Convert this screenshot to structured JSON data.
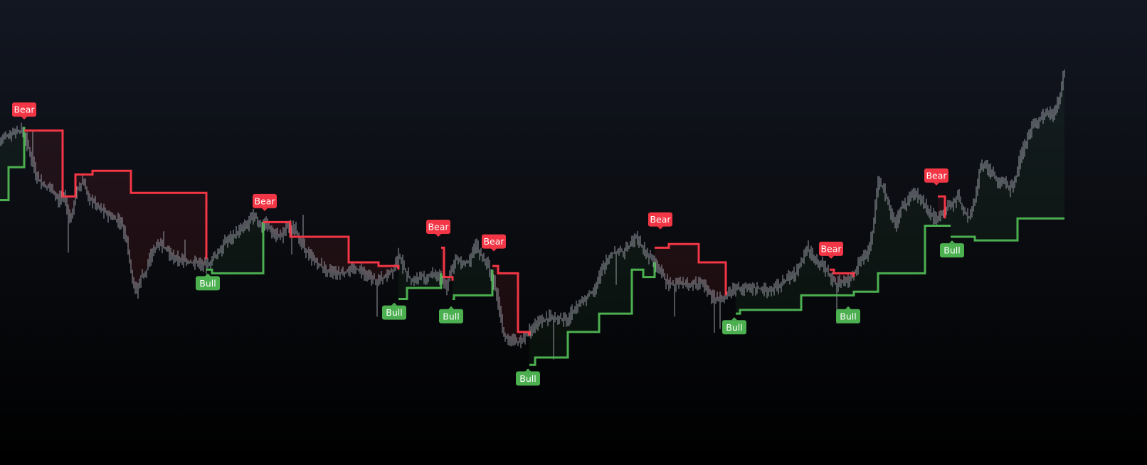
{
  "chart_data": {
    "type": "line",
    "title": "",
    "xlabel": "",
    "ylabel": "",
    "x_bars": [
      0,
      1560
    ],
    "ylim": [
      0,
      100
    ],
    "grid": false,
    "price_series": {
      "name": "price",
      "color": "#b2b5be",
      "points": [
        [
          0,
          73
        ],
        [
          12,
          75
        ],
        [
          22,
          76
        ],
        [
          32,
          76
        ],
        [
          40,
          71
        ],
        [
          52,
          63
        ],
        [
          62,
          61
        ],
        [
          70,
          60
        ],
        [
          82,
          57
        ],
        [
          90,
          59
        ],
        [
          98,
          51
        ],
        [
          108,
          60
        ],
        [
          116,
          62
        ],
        [
          124,
          58
        ],
        [
          134,
          56
        ],
        [
          146,
          54
        ],
        [
          158,
          52
        ],
        [
          170,
          51
        ],
        [
          178,
          46
        ],
        [
          186,
          35
        ],
        [
          192,
          32
        ],
        [
          198,
          36
        ],
        [
          206,
          38
        ],
        [
          214,
          43
        ],
        [
          222,
          45
        ],
        [
          232,
          44
        ],
        [
          240,
          42
        ],
        [
          250,
          41
        ],
        [
          262,
          40
        ],
        [
          276,
          40
        ],
        [
          290,
          39
        ],
        [
          304,
          42
        ],
        [
          318,
          46
        ],
        [
          332,
          48
        ],
        [
          346,
          50
        ],
        [
          358,
          53
        ],
        [
          364,
          50
        ],
        [
          372,
          51
        ],
        [
          384,
          48
        ],
        [
          396,
          47
        ],
        [
          404,
          50
        ],
        [
          414,
          49
        ],
        [
          424,
          45
        ],
        [
          434,
          42
        ],
        [
          444,
          40
        ],
        [
          458,
          38
        ],
        [
          470,
          37
        ],
        [
          482,
          37
        ],
        [
          494,
          38
        ],
        [
          506,
          38
        ],
        [
          518,
          36
        ],
        [
          530,
          35
        ],
        [
          542,
          36
        ],
        [
          552,
          38
        ],
        [
          560,
          42
        ],
        [
          568,
          38
        ],
        [
          578,
          35
        ],
        [
          588,
          36
        ],
        [
          600,
          36
        ],
        [
          612,
          37
        ],
        [
          620,
          35
        ],
        [
          626,
          33
        ],
        [
          632,
          37
        ],
        [
          640,
          41
        ],
        [
          650,
          40
        ],
        [
          660,
          40
        ],
        [
          668,
          45
        ],
        [
          676,
          42
        ],
        [
          684,
          40
        ],
        [
          690,
          37
        ],
        [
          696,
          33
        ],
        [
          702,
          27
        ],
        [
          708,
          20
        ],
        [
          716,
          19
        ],
        [
          724,
          18
        ],
        [
          734,
          19
        ],
        [
          742,
          21
        ],
        [
          752,
          23
        ],
        [
          762,
          24
        ],
        [
          772,
          25
        ],
        [
          784,
          25
        ],
        [
          796,
          24
        ],
        [
          806,
          27
        ],
        [
          816,
          29
        ],
        [
          826,
          31
        ],
        [
          836,
          33
        ],
        [
          846,
          38
        ],
        [
          856,
          42
        ],
        [
          866,
          43
        ],
        [
          876,
          43
        ],
        [
          886,
          45
        ],
        [
          894,
          47
        ],
        [
          900,
          45
        ],
        [
          910,
          42
        ],
        [
          920,
          40
        ],
        [
          930,
          37
        ],
        [
          938,
          34
        ],
        [
          948,
          34
        ],
        [
          958,
          34
        ],
        [
          968,
          34
        ],
        [
          978,
          34
        ],
        [
          986,
          35
        ],
        [
          994,
          32
        ],
        [
          1004,
          30
        ],
        [
          1014,
          30
        ],
        [
          1024,
          32
        ],
        [
          1034,
          33
        ],
        [
          1044,
          33
        ],
        [
          1054,
          33
        ],
        [
          1066,
          33
        ],
        [
          1078,
          32
        ],
        [
          1088,
          33
        ],
        [
          1098,
          34
        ],
        [
          1108,
          36
        ],
        [
          1118,
          37
        ],
        [
          1126,
          40
        ],
        [
          1134,
          44
        ],
        [
          1142,
          42
        ],
        [
          1150,
          40
        ],
        [
          1158,
          39
        ],
        [
          1166,
          36
        ],
        [
          1176,
          34
        ],
        [
          1186,
          35
        ],
        [
          1194,
          35
        ],
        [
          1202,
          38
        ],
        [
          1210,
          41
        ],
        [
          1218,
          42
        ],
        [
          1226,
          48
        ],
        [
          1234,
          62
        ],
        [
          1242,
          60
        ],
        [
          1250,
          55
        ],
        [
          1258,
          50
        ],
        [
          1266,
          55
        ],
        [
          1274,
          56
        ],
        [
          1282,
          59
        ],
        [
          1290,
          58
        ],
        [
          1298,
          56
        ],
        [
          1306,
          54
        ],
        [
          1316,
          51
        ],
        [
          1322,
          53
        ],
        [
          1330,
          55
        ],
        [
          1338,
          56
        ],
        [
          1346,
          58
        ],
        [
          1354,
          54
        ],
        [
          1362,
          52
        ],
        [
          1370,
          57
        ],
        [
          1378,
          67
        ],
        [
          1386,
          66
        ],
        [
          1394,
          64
        ],
        [
          1402,
          62
        ],
        [
          1410,
          63
        ],
        [
          1418,
          60
        ],
        [
          1426,
          62
        ],
        [
          1434,
          69
        ],
        [
          1442,
          73
        ],
        [
          1450,
          77
        ],
        [
          1458,
          78
        ],
        [
          1466,
          80
        ],
        [
          1474,
          81
        ],
        [
          1480,
          80
        ],
        [
          1486,
          84
        ],
        [
          1490,
          86
        ],
        [
          1493,
          90
        ],
        [
          1496,
          92
        ]
      ]
    },
    "trend_series": [
      {
        "name": "bull-trail-0",
        "trend": "bull",
        "color": "#4caf50",
        "steps": [
          [
            0,
            57
          ],
          [
            12,
            57
          ],
          [
            12,
            66
          ],
          [
            34,
            66
          ],
          [
            34,
            77
          ]
        ]
      },
      {
        "name": "bear-trail-1",
        "trend": "bear",
        "color": "#f23645",
        "steps": [
          [
            34,
            76
          ],
          [
            88,
            76
          ],
          [
            88,
            58
          ],
          [
            106,
            58
          ],
          [
            106,
            64
          ],
          [
            130,
            64
          ],
          [
            130,
            65
          ],
          [
            184,
            65
          ],
          [
            184,
            59
          ],
          [
            290,
            59
          ],
          [
            290,
            41
          ]
        ]
      },
      {
        "name": "bull-trail-2",
        "trend": "bull",
        "color": "#4caf50",
        "steps": [
          [
            290,
            38
          ],
          [
            298,
            38
          ],
          [
            298,
            37
          ],
          [
            370,
            37
          ],
          [
            370,
            51
          ]
        ]
      },
      {
        "name": "bear-trail-3",
        "trend": "bear",
        "color": "#f23645",
        "steps": [
          [
            370,
            51
          ],
          [
            408,
            51
          ],
          [
            408,
            47
          ],
          [
            490,
            47
          ],
          [
            490,
            40
          ],
          [
            532,
            40
          ],
          [
            532,
            39
          ],
          [
            560,
            39
          ],
          [
            560,
            38
          ]
        ]
      },
      {
        "name": "bull-trail-4",
        "trend": "bull",
        "color": "#4caf50",
        "steps": [
          [
            560,
            30
          ],
          [
            572,
            30
          ],
          [
            572,
            33
          ],
          [
            620,
            33
          ],
          [
            620,
            37
          ]
        ]
      },
      {
        "name": "bear-trail-5",
        "trend": "bear",
        "color": "#f23645",
        "steps": [
          [
            620,
            44
          ],
          [
            624,
            44
          ],
          [
            624,
            36
          ],
          [
            636,
            36
          ],
          [
            636,
            35
          ]
        ]
      },
      {
        "name": "bull-trail-6",
        "trend": "bull",
        "color": "#4caf50",
        "steps": [
          [
            636,
            30
          ],
          [
            638,
            30
          ],
          [
            638,
            31
          ],
          [
            692,
            31
          ],
          [
            692,
            38
          ]
        ]
      },
      {
        "name": "bear-trail-7",
        "trend": "bear",
        "color": "#f23645",
        "steps": [
          [
            692,
            39
          ],
          [
            700,
            39
          ],
          [
            700,
            37
          ],
          [
            728,
            37
          ],
          [
            728,
            21
          ],
          [
            744,
            21
          ],
          [
            744,
            20
          ]
        ]
      },
      {
        "name": "bull-trail-8",
        "trend": "bull",
        "color": "#4caf50",
        "steps": [
          [
            744,
            12
          ],
          [
            752,
            12
          ],
          [
            752,
            14
          ],
          [
            798,
            14
          ],
          [
            798,
            21
          ],
          [
            842,
            21
          ],
          [
            842,
            26
          ],
          [
            888,
            26
          ],
          [
            888,
            38
          ],
          [
            904,
            38
          ],
          [
            904,
            36
          ],
          [
            920,
            36
          ],
          [
            920,
            40
          ]
        ]
      },
      {
        "name": "bear-trail-9",
        "trend": "bear",
        "color": "#f23645",
        "steps": [
          [
            920,
            44
          ],
          [
            940,
            44
          ],
          [
            940,
            45
          ],
          [
            982,
            45
          ],
          [
            982,
            40
          ],
          [
            1020,
            40
          ],
          [
            1020,
            31
          ]
        ]
      },
      {
        "name": "bull-trail-10",
        "trend": "bull",
        "color": "#4caf50",
        "steps": [
          [
            1034,
            26
          ],
          [
            1040,
            26
          ],
          [
            1040,
            27
          ],
          [
            1126,
            27
          ],
          [
            1126,
            31
          ],
          [
            1178,
            31
          ],
          [
            1178,
            31
          ],
          [
            1200,
            31
          ],
          [
            1200,
            32
          ],
          [
            1234,
            32
          ],
          [
            1234,
            37
          ],
          [
            1300,
            37
          ],
          [
            1300,
            50
          ],
          [
            1336,
            50
          ]
        ]
      },
      {
        "name": "bear-trail-11",
        "trend": "bear",
        "color": "#f23645",
        "steps": [
          [
            1166,
            38
          ],
          [
            1172,
            38
          ],
          [
            1172,
            37
          ],
          [
            1200,
            37
          ],
          [
            1200,
            36
          ]
        ]
      },
      {
        "name": "bear-trail-12",
        "trend": "bear",
        "color": "#f23645",
        "steps": [
          [
            1318,
            58
          ],
          [
            1328,
            58
          ],
          [
            1328,
            52
          ]
        ]
      },
      {
        "name": "bull-trail-13",
        "trend": "bull",
        "color": "#4caf50",
        "steps": [
          [
            1336,
            47
          ],
          [
            1370,
            47
          ],
          [
            1370,
            46
          ],
          [
            1430,
            46
          ],
          [
            1430,
            52
          ],
          [
            1496,
            52
          ]
        ]
      }
    ],
    "signals": [
      {
        "text": "Bear",
        "type": "bear",
        "x": 34,
        "y": 79
      },
      {
        "text": "Bull",
        "type": "bull",
        "x": 292,
        "y": 37
      },
      {
        "text": "Bear",
        "type": "bear",
        "x": 372,
        "y": 54
      },
      {
        "text": "Bull",
        "type": "bull",
        "x": 554,
        "y": 29
      },
      {
        "text": "Bear",
        "type": "bear",
        "x": 616,
        "y": 47
      },
      {
        "text": "Bull",
        "type": "bull",
        "x": 634,
        "y": 28
      },
      {
        "text": "Bear",
        "type": "bear",
        "x": 694,
        "y": 43
      },
      {
        "text": "Bull",
        "type": "bull",
        "x": 742,
        "y": 11
      },
      {
        "text": "Bear",
        "type": "bear",
        "x": 928,
        "y": 49
      },
      {
        "text": "Bull",
        "type": "bull",
        "x": 1032,
        "y": 25
      },
      {
        "text": "Bear",
        "type": "bear",
        "x": 1168,
        "y": 41
      },
      {
        "text": "Bull",
        "type": "bull",
        "x": 1192,
        "y": 28
      },
      {
        "text": "Bear",
        "type": "bear",
        "x": 1316,
        "y": 61
      },
      {
        "text": "Bull",
        "type": "bull",
        "x": 1338,
        "y": 46
      }
    ]
  },
  "colors": {
    "bull": "#4caf50",
    "bear": "#f23645",
    "bull_fill": "#4caf50",
    "bear_fill": "#f23645",
    "price": "#b2b5be",
    "label_text": "#ffffff"
  }
}
